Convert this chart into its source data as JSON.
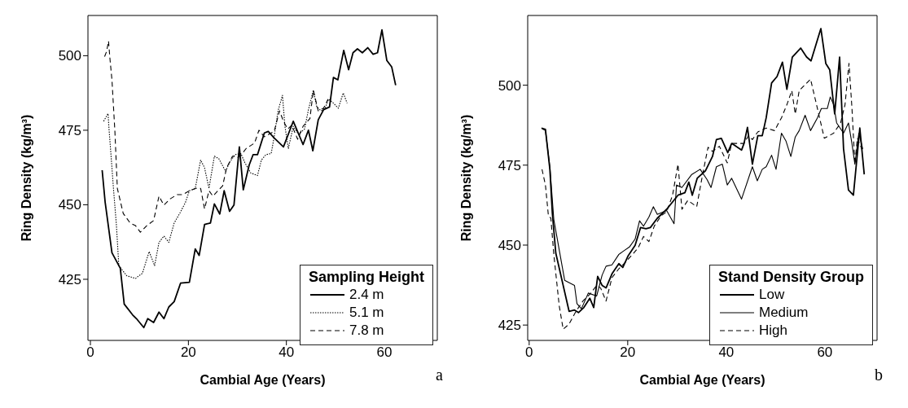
{
  "chart_data": [
    {
      "type": "line",
      "xlabel": "Cambial Age (Years)",
      "ylabel": "Ring Density (kg/m³)",
      "legend_title": "Sampling Height",
      "legend": "bottom right",
      "xlim": [
        -0.5,
        70.8
      ],
      "ylim": [
        404.5,
        513.5
      ],
      "xticks": [
        0,
        20,
        40,
        60
      ],
      "yticks": [
        425,
        450,
        475,
        500
      ],
      "annotations": [
        "a"
      ],
      "series": [
        {
          "name": "2.4 m",
          "color": "#000000",
          "line_style": "solid",
          "x": [
            2.4,
            3.0,
            4.4,
            6.1,
            6.9,
            8.6,
            9.4,
            10.9,
            11.7,
            12.9,
            14.0,
            15.0,
            16.0,
            17.1,
            18.4,
            20.2,
            21.4,
            22.2,
            23.3,
            24.5,
            25.3,
            26.4,
            27.3,
            28.4,
            29.3,
            30.4,
            31.2,
            32.4,
            33.2,
            34.1,
            35.5,
            36.3,
            37.5,
            39.4,
            41.4,
            43.4,
            44.5,
            45.4,
            46.5,
            47.6,
            48.8,
            49.6,
            50.5,
            51.7,
            52.7,
            53.6,
            54.5,
            55.5,
            56.6,
            57.7,
            58.6,
            59.5,
            60.5,
            61.5,
            62.3
          ],
          "values": [
            461.6,
            451,
            433.9,
            428.7,
            416.7,
            413.1,
            411.8,
            408.8,
            411.8,
            410.5,
            414,
            411.8,
            415.7,
            417.5,
            423.7,
            424,
            435.2,
            433,
            443.4,
            443.9,
            450.3,
            446.9,
            454.7,
            447.8,
            449.9,
            469.4,
            455,
            463.3,
            466.8,
            466.8,
            474.1,
            474.6,
            472.4,
            469.4,
            478,
            470.2,
            475,
            468.1,
            478.5,
            481.9,
            482.8,
            492.7,
            491.9,
            501.8,
            495.3,
            501,
            502.3,
            501,
            502.7,
            500.5,
            501,
            508.7,
            498.4,
            496.2,
            490.1
          ]
        },
        {
          "name": "5.1 m",
          "color": "#000000",
          "line_style": "dotted",
          "x": [
            2.7,
            3.6,
            3.8,
            4.2,
            4.7,
            5.3,
            5.8,
            7.4,
            9.2,
            10.6,
            12.0,
            13.1,
            14.0,
            15.0,
            16.0,
            17.1,
            18.3,
            19.4,
            20.2,
            21.4,
            22.5,
            23.3,
            24.2,
            25.3,
            26.2,
            27.6,
            28.4,
            29.5,
            30.7,
            31.5,
            32.7,
            34.1,
            34.9,
            35.8,
            36.9,
            37.5,
            38.3,
            39.2,
            39.7,
            40.4,
            41.4,
            42.5,
            43.7,
            44.5,
            45.5,
            46.2,
            47.1,
            47.9,
            48.6,
            49.6,
            50.6,
            51.6,
            52.4
          ],
          "values": [
            478,
            480.6,
            475.4,
            466.8,
            455.6,
            443.4,
            429.6,
            426.2,
            425.3,
            427,
            434.3,
            429.6,
            437.4,
            439.5,
            437.4,
            443.9,
            447.3,
            450.8,
            454.7,
            455.5,
            465,
            462.4,
            455.5,
            466.3,
            465.5,
            461.2,
            464.2,
            466.8,
            467.2,
            464.2,
            460.7,
            459.8,
            465,
            466.8,
            467.2,
            472.8,
            481.5,
            486.7,
            476.3,
            468.9,
            476.3,
            473.7,
            475.4,
            481.9,
            488.4,
            482.8,
            481.5,
            482.4,
            485.4,
            484.1,
            482.4,
            487.5,
            484.1
          ]
        },
        {
          "name": "7.8 m",
          "color": "#000000",
          "line_style": "dashed",
          "x": [
            2.9,
            3.3,
            3.7,
            4.0,
            4.4,
            5.0,
            5.5,
            6.7,
            8.1,
            9.2,
            10.2,
            11.5,
            12.9,
            14.0,
            15.0,
            16.3,
            17.7,
            18.8,
            20.2,
            21.6,
            22.5,
            23.3,
            24.2,
            25.0,
            27.0,
            27.8,
            29.0,
            30.1,
            31.0,
            31.8,
            33.5,
            34.4,
            35.5,
            37.5,
            38.6,
            39.4,
            40.3,
            41.1,
            42.3,
            43.4,
            44.8,
            45.5,
            46.5,
            47.6,
            48.5
          ],
          "values": [
            499.7,
            501.4,
            504.9,
            498.8,
            491.9,
            474.6,
            455.5,
            447.1,
            443.9,
            443,
            440.8,
            443,
            444.7,
            452.9,
            449.9,
            452,
            453.4,
            453.4,
            454.7,
            455.5,
            455.5,
            448.6,
            454.7,
            452.9,
            456.4,
            462.4,
            466.3,
            465.9,
            467.2,
            468.9,
            470.7,
            475,
            472.8,
            474.6,
            481.5,
            478,
            475.4,
            476.7,
            472,
            476.3,
            478.9,
            488.4,
            481.5,
            482.4,
            485.4
          ]
        }
      ]
    },
    {
      "type": "line",
      "xlabel": "Cambial Age (Years)",
      "ylabel": "Ring Density (kg/m³)",
      "legend_title": "Stand Density Group",
      "legend": "bottom right",
      "xlim": [
        -0.3,
        70.6
      ],
      "ylim": [
        420.2,
        521.8
      ],
      "xticks": [
        0,
        20,
        40,
        60
      ],
      "yticks": [
        425,
        450,
        475,
        500
      ],
      "annotations": [
        "b"
      ],
      "series": [
        {
          "name": "Low",
          "color": "#000000",
          "line_style": "solid",
          "x": [
            2.5,
            3.3,
            4.2,
            4.7,
            5.4,
            6.9,
            8.1,
            9.2,
            10.0,
            11.1,
            12.3,
            13.1,
            13.9,
            14.8,
            15.6,
            16.8,
            18.2,
            19.0,
            20.1,
            21.5,
            22.6,
            23.7,
            24.6,
            26.0,
            27.9,
            30.2,
            31.6,
            32.4,
            33.1,
            34.1,
            35.8,
            37.2,
            38.0,
            39.0,
            40.3,
            41.1,
            43.1,
            43.6,
            44.3,
            45.3,
            46.4,
            47.3,
            48.1,
            49.2,
            50.3,
            51.4,
            52.3,
            53.4,
            55.1,
            56.3,
            57.2,
            59.2,
            60.2,
            61.0,
            62.0,
            63.0,
            63.8,
            64.8,
            65.8,
            67.1,
            68.0
          ],
          "values": [
            486.6,
            486.2,
            473.7,
            460,
            447.5,
            437.4,
            429.3,
            429.7,
            428.9,
            430.5,
            433.4,
            430.5,
            440.2,
            437.4,
            436.6,
            441,
            444.2,
            443,
            446.7,
            449.9,
            455.5,
            455.1,
            455.5,
            458.4,
            461.2,
            465.6,
            466.4,
            469.7,
            465.6,
            470.9,
            473.3,
            477.7,
            483,
            483.4,
            478.9,
            481.8,
            479.7,
            481.8,
            486.8,
            475.3,
            484.2,
            484.2,
            489.8,
            500.7,
            502.7,
            507.2,
            498.7,
            508.8,
            511.6,
            508.8,
            507.6,
            517.7,
            506.8,
            504.8,
            491,
            508.8,
            480.1,
            467.2,
            465.6,
            486.6,
            472.1
          ]
        },
        {
          "name": "Medium",
          "color": "#000000",
          "line_style": "solid",
          "x": [
            2.6,
            3.3,
            4.2,
            5.0,
            7.2,
            9.2,
            9.7,
            10.6,
            12.0,
            13.7,
            14.8,
            15.6,
            16.8,
            18.2,
            19.3,
            20.4,
            21.5,
            22.4,
            23.2,
            24.3,
            25.2,
            26.0,
            27.9,
            29.4,
            29.9,
            31.0,
            33.0,
            34.7,
            36.1,
            36.9,
            38.0,
            39.2,
            40.2,
            41.1,
            43.1,
            45.3,
            46.3,
            47.3,
            48.1,
            49.2,
            50.1,
            51.2,
            52.1,
            53.1,
            54.0,
            54.8,
            56.0,
            57.1,
            58.5,
            59.3,
            60.5,
            61.1,
            61.8,
            62.4,
            63.8,
            64.8,
            65.5,
            66.1,
            66.9,
            67.7
          ],
          "values": [
            486.4,
            485.8,
            474.5,
            458,
            439,
            437.4,
            431.7,
            430.1,
            435,
            434.1,
            440.6,
            443.4,
            443.8,
            447.1,
            448.3,
            449.5,
            451.9,
            457.6,
            455.9,
            458.8,
            462,
            459.6,
            460.8,
            456.7,
            468.8,
            468,
            472.1,
            473.7,
            470.5,
            468,
            474.5,
            475.3,
            468.8,
            470.9,
            464.4,
            474.5,
            470.1,
            473.7,
            474.5,
            478.1,
            473.7,
            485,
            482.6,
            477.7,
            483.8,
            485.8,
            490.6,
            485.8,
            489.8,
            492.7,
            492.7,
            496.3,
            493.9,
            488.2,
            485,
            488.2,
            481.8,
            475.3,
            485,
            480.1
          ]
        },
        {
          "name": "High",
          "color": "#000000",
          "line_style": "dashed",
          "x": [
            2.6,
            3.3,
            3.9,
            4.4,
            5.0,
            6.1,
            6.9,
            8.1,
            9.5,
            10.9,
            12.3,
            13.7,
            14.5,
            15.6,
            16.8,
            18.2,
            19.5,
            21.2,
            22.1,
            23.2,
            24.3,
            25.4,
            26.8,
            27.9,
            29.1,
            30.2,
            31.0,
            32.2,
            34.0,
            35.2,
            36.3,
            37.2,
            38.6,
            40.2,
            41.1,
            43.6,
            44.5,
            45.3,
            46.4,
            48.1,
            49.8,
            51.2,
            52.3,
            53.3,
            54.0,
            54.8,
            57.1,
            58.2,
            59.9,
            61.8,
            63.2,
            64.1,
            64.9,
            65.5,
            66.1,
            66.6,
            67.6
          ],
          "values": [
            473.7,
            468.8,
            459.2,
            458.4,
            447.1,
            431,
            423.7,
            425.3,
            429.3,
            432.5,
            434.6,
            437.4,
            436.6,
            432.5,
            439.8,
            442.6,
            444.6,
            447.5,
            449.1,
            452.7,
            451.1,
            456,
            459.2,
            460.4,
            465.6,
            475.3,
            461.2,
            464,
            462,
            472.1,
            480.6,
            479.3,
            480.9,
            475.7,
            481.8,
            481.8,
            484.2,
            483,
            485.4,
            486.6,
            485.8,
            489.8,
            493.9,
            498.3,
            491,
            498.3,
            501.9,
            494.7,
            483.4,
            485,
            488.2,
            493.9,
            506.8,
            493,
            475.3,
            483.4,
            479.7
          ]
        }
      ]
    }
  ]
}
